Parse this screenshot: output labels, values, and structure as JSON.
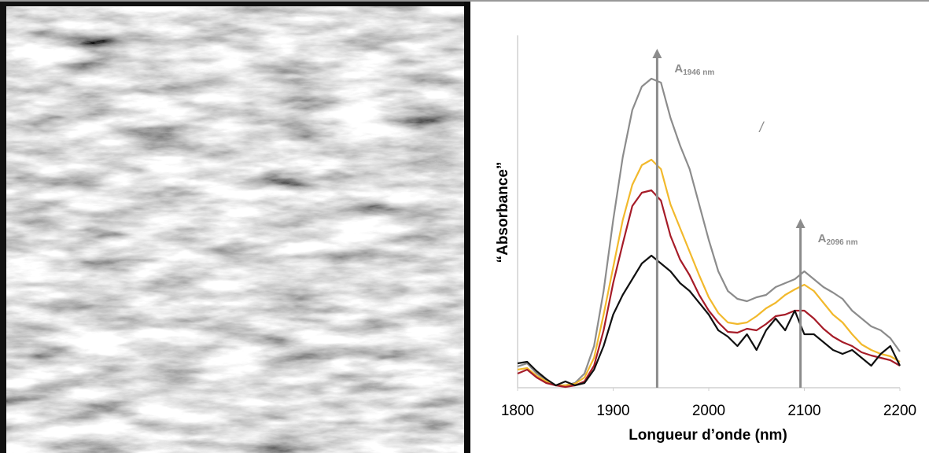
{
  "chart_data": {
    "type": "line",
    "x_label": "Longueur d’onde (nm)",
    "y_label": "“Absorbance”",
    "x": [
      1800,
      1810,
      1820,
      1830,
      1840,
      1850,
      1860,
      1870,
      1880,
      1890,
      1900,
      1910,
      1920,
      1930,
      1940,
      1950,
      1960,
      1970,
      1980,
      1990,
      2000,
      2010,
      2020,
      2030,
      2040,
      2050,
      2060,
      2070,
      2080,
      2090,
      2100,
      2110,
      2120,
      2130,
      2140,
      2150,
      2160,
      2170,
      2180,
      2190,
      2200
    ],
    "series": [
      {
        "color": "#8c8c8c",
        "values": [
          27,
          31,
          18,
          10,
          3,
          3,
          6,
          18,
          53,
          123,
          213,
          293,
          353,
          383,
          393,
          388,
          343,
          308,
          278,
          233,
          188,
          148,
          123,
          113,
          110,
          115,
          118,
          128,
          133,
          138,
          148,
          138,
          128,
          121,
          113,
          98,
          88,
          78,
          73,
          63,
          46
        ]
      },
      {
        "color": "#f2b92c",
        "values": [
          23,
          25,
          15,
          8,
          3,
          3,
          5,
          13,
          38,
          93,
          153,
          213,
          258,
          283,
          290,
          278,
          233,
          203,
          173,
          143,
          115,
          95,
          83,
          81,
          83,
          91,
          101,
          108,
          118,
          125,
          131,
          123,
          108,
          93,
          83,
          68,
          55,
          48,
          43,
          40,
          33
        ]
      },
      {
        "color": "#a61c28",
        "values": [
          18,
          23,
          13,
          6,
          3,
          1,
          3,
          8,
          28,
          73,
          133,
          183,
          231,
          248,
          251,
          238,
          193,
          163,
          143,
          118,
          98,
          83,
          71,
          70,
          75,
          73,
          81,
          91,
          93,
          98,
          98,
          88,
          75,
          65,
          58,
          53,
          45,
          41,
          38,
          35,
          28
        ]
      },
      {
        "color": "#111111",
        "values": [
          31,
          33,
          21,
          11,
          3,
          8,
          3,
          6,
          23,
          53,
          93,
          118,
          138,
          158,
          168,
          158,
          148,
          133,
          123,
          108,
          93,
          73,
          65,
          53,
          68,
          48,
          73,
          88,
          73,
          98,
          68,
          68,
          58,
          48,
          43,
          48,
          38,
          28,
          43,
          53,
          28
        ]
      }
    ],
    "xlim": [
      1800,
      2200
    ],
    "xticks": [
      1800,
      1900,
      2000,
      2100,
      2200
    ],
    "ylim": [
      0,
      450
    ],
    "annotations": [
      {
        "text": "A",
        "subscript": "1946 nm",
        "x": 1946,
        "y": 431,
        "arrow": true
      },
      {
        "text": "A",
        "subscript": "2096 nm",
        "x": 2096,
        "y": 215,
        "arrow": true
      },
      {
        "text": "/",
        "x": 2055,
        "y": 330,
        "arrow": false
      }
    ]
  }
}
